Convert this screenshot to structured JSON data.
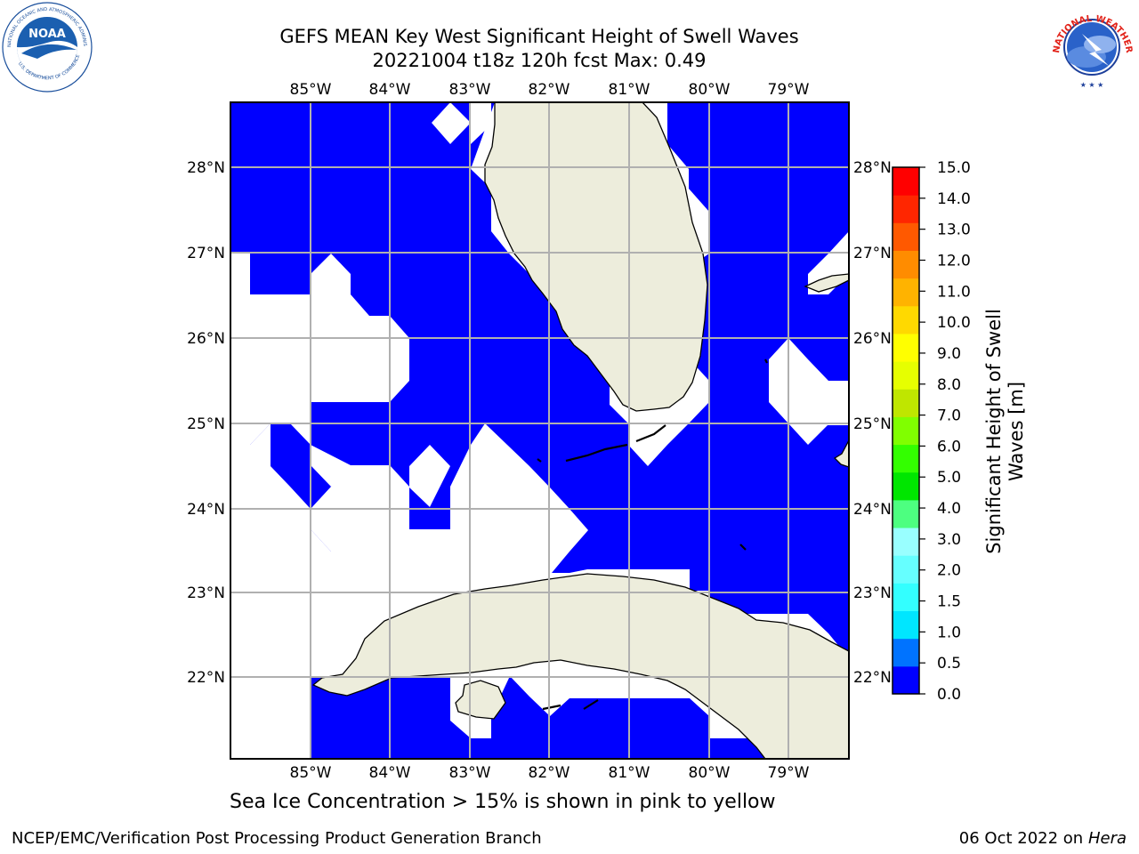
{
  "title": {
    "line1": "GEFS MEAN Key West Significant Height of Swell Waves",
    "line2": "20221004 t18z 120h fcst   Max: 0.49"
  },
  "map": {
    "lon_ticks": [
      "85°W",
      "84°W",
      "83°W",
      "82°W",
      "81°W",
      "80°W",
      "79°W"
    ],
    "lat_ticks": [
      "28°N",
      "27°N",
      "26°N",
      "25°N",
      "24°N",
      "23°N",
      "22°N"
    ],
    "field_color": "#0000ff",
    "land_color": "#ededdc",
    "missing_color": "#ffffff",
    "grid_color": "#b0b0b0"
  },
  "colorbar": {
    "label_line1": "Significant Height of Swell",
    "label_line2": "Waves [m]",
    "ticks": [
      "0.0",
      "0.5",
      "1.0",
      "1.5",
      "2.0",
      "3.0",
      "4.0",
      "5.0",
      "6.0",
      "7.0",
      "8.0",
      "9.0",
      "10.0",
      "11.0",
      "12.0",
      "13.0",
      "14.0",
      "15.0"
    ],
    "colors": [
      "#0000ff",
      "#0073ff",
      "#00e6ff",
      "#33ffff",
      "#66ffff",
      "#99ffff",
      "#4dff80",
      "#00e600",
      "#33ff00",
      "#80ff00",
      "#bfe600",
      "#e6ff00",
      "#ffff00",
      "#ffd900",
      "#ffb300",
      "#ff8c00",
      "#ff5900",
      "#ff2600",
      "#ff0000"
    ]
  },
  "footnote": "Sea Ice Concentration > 15% is shown in pink to yellow",
  "footer": {
    "left": "NCEP/EMC/Verification Post Processing Product Generation Branch",
    "right_date": "06 Oct 2022 on ",
    "right_host": "Hera"
  },
  "logos": {
    "noaa_text": "NOAA",
    "noaa_ring": "NATIONAL OCEANIC AND ATMOSPHERIC ADMINISTRATION",
    "noaa_bottom": "U.S. DEPARTMENT OF COMMERCE",
    "nws_text": "NATIONAL WEATHER SERVICE"
  }
}
